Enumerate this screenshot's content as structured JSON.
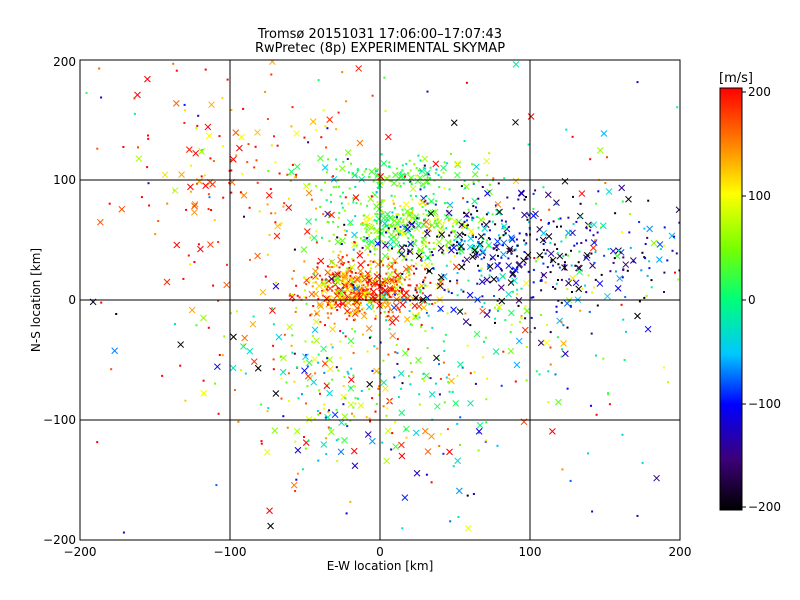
{
  "chart_data": {
    "type": "scatter",
    "title": "Tromsø 20151031 17:06:00–17:07:43",
    "subtitle": "RwPretec (8p) EXPERIMENTAL SKYMAP",
    "xlabel": "E-W location [km]",
    "ylabel": "N-S location [km]",
    "xlim": [
      -200,
      200
    ],
    "ylim": [
      -200,
      200
    ],
    "x_ticks": [
      "−200",
      "−100",
      "0",
      "100",
      "200"
    ],
    "y_ticks": [
      "−200",
      "−100",
      "0",
      "100",
      "200"
    ],
    "grid": true,
    "colorbar": {
      "label": "[m/s]",
      "range": [
        -200,
        200
      ],
      "ticks": [
        "200",
        "100",
        "0",
        "−100",
        "−200"
      ]
    },
    "markers": [
      "dot",
      "cross"
    ],
    "clusters": [
      {
        "center": [
          -10,
          10
        ],
        "spread": [
          22,
          12
        ],
        "count": 520,
        "velocity_mean": 160,
        "velocity_spread": 55
      },
      {
        "center": [
          15,
          60
        ],
        "spread": [
          25,
          15
        ],
        "count": 340,
        "velocity_mean": 40,
        "velocity_spread": 40
      },
      {
        "center": [
          80,
          45
        ],
        "spread": [
          45,
          25
        ],
        "count": 320,
        "velocity_mean": -150,
        "velocity_spread": 60
      },
      {
        "center": [
          10,
          105
        ],
        "spread": [
          30,
          8
        ],
        "count": 140,
        "velocity_mean": 20,
        "velocity_spread": 30
      },
      {
        "center": [
          -30,
          -70
        ],
        "spread": [
          35,
          35
        ],
        "count": 200,
        "velocity_mean": 60,
        "velocity_spread": 100
      },
      {
        "center": [
          -90,
          100
        ],
        "spread": [
          45,
          50
        ],
        "count": 170,
        "velocity_mean": 170,
        "velocity_spread": 50
      },
      {
        "center": [
          60,
          -30
        ],
        "spread": [
          60,
          45
        ],
        "count": 170,
        "velocity_mean": 0,
        "velocity_spread": 100
      },
      {
        "center": [
          130,
          40
        ],
        "spread": [
          40,
          30
        ],
        "count": 160,
        "velocity_mean": -60,
        "velocity_spread": 90
      },
      {
        "center": [
          0,
          0
        ],
        "spread": [
          110,
          110
        ],
        "count": 260,
        "velocity_mean": 40,
        "velocity_spread": 150
      }
    ]
  }
}
